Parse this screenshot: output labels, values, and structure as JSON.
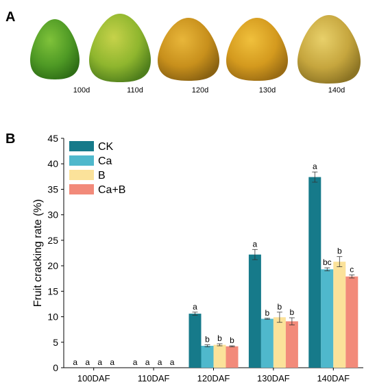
{
  "panel_a": {
    "letter": "A",
    "fruits": [
      {
        "label": "100d",
        "colors": [
          "#7fc23a",
          "#4f9a25",
          "#2f6e16"
        ]
      },
      {
        "label": "110d",
        "colors": [
          "#c6d24a",
          "#8fb62e",
          "#4f7e1c"
        ]
      },
      {
        "label": "120d",
        "colors": [
          "#e8b63a",
          "#c8901c",
          "#8a6212"
        ]
      },
      {
        "label": "130d",
        "colors": [
          "#f0c03c",
          "#d49a1e",
          "#9a6c14"
        ]
      },
      {
        "label": "140d",
        "colors": [
          "#e8d06a",
          "#c6a63e",
          "#8c7424"
        ]
      }
    ]
  },
  "panel_b": {
    "letter": "B"
  },
  "chart_data": {
    "type": "bar",
    "ylabel": "Fruit cracking rate (%)",
    "xlabel": "",
    "ylim": [
      0,
      45
    ],
    "yticks": [
      0,
      5,
      10,
      15,
      20,
      25,
      30,
      35,
      40,
      45
    ],
    "categories": [
      "100DAF",
      "110DAF",
      "120DAF",
      "130DAF",
      "140DAF"
    ],
    "legend_position": "top-left",
    "series": [
      {
        "name": "CK",
        "color": "#167a8a",
        "values": [
          0,
          0,
          10.6,
          22.2,
          37.4
        ],
        "errors": [
          0,
          0,
          0.3,
          1.0,
          1.0
        ],
        "letters": [
          "a",
          "a",
          "a",
          "a",
          "a"
        ]
      },
      {
        "name": "Ca",
        "color": "#4fb8cc",
        "values": [
          0,
          0,
          4.3,
          9.6,
          19.3
        ],
        "errors": [
          0,
          0,
          0.2,
          0.1,
          0.3
        ],
        "letters": [
          "a",
          "a",
          "b",
          "b",
          "bc"
        ]
      },
      {
        "name": "B",
        "color": "#fbe29a",
        "values": [
          0,
          0,
          4.5,
          9.9,
          20.8
        ],
        "errors": [
          0,
          0,
          0.2,
          1.0,
          1.0
        ],
        "letters": [
          "a",
          "a",
          "b",
          "b",
          "b"
        ]
      },
      {
        "name": "Ca+B",
        "color": "#f28a7a",
        "values": [
          0,
          0,
          4.2,
          9.1,
          17.9
        ],
        "errors": [
          0,
          0,
          0.1,
          0.7,
          0.3
        ],
        "letters": [
          "a",
          "a",
          "b",
          "b",
          "c"
        ]
      }
    ]
  }
}
